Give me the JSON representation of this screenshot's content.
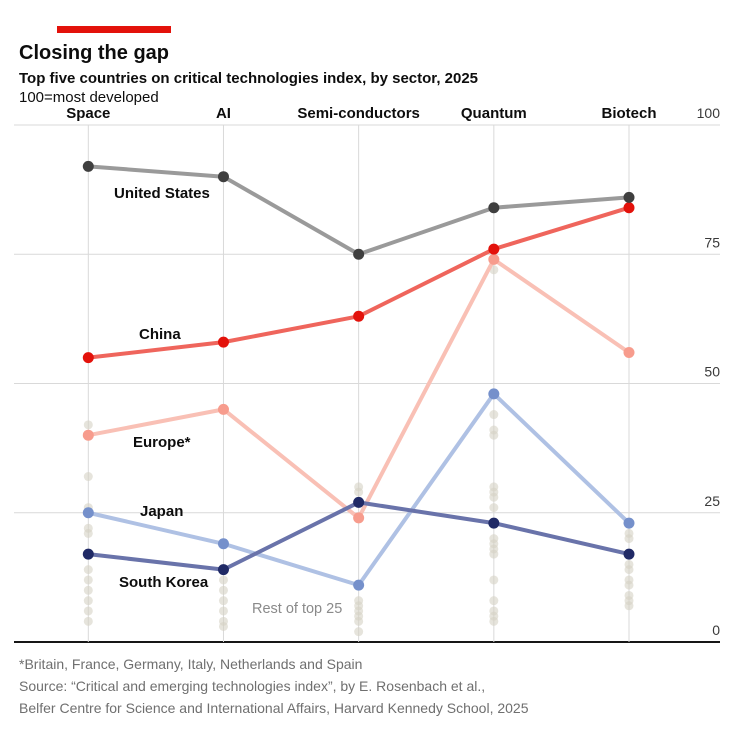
{
  "accent_color": "#e3120b",
  "header": {
    "title": "Closing the gap",
    "subtitle": "Top five countries on critical technologies index, by sector, 2025",
    "unit_note": "100=most developed"
  },
  "chart_data": {
    "type": "line",
    "title": "Closing the gap",
    "subtitle": "Top five countries on critical technologies index, by sector, 2025",
    "unit_note": "100=most developed",
    "categories": [
      "Space",
      "AI",
      "Semi-conductors",
      "Quantum",
      "Biotech"
    ],
    "series": [
      {
        "name": "United States",
        "values": [
          92,
          90,
          75,
          84,
          86
        ],
        "line_color": "#9a9a9a",
        "point_color": "#3f3f3f"
      },
      {
        "name": "China",
        "values": [
          55,
          58,
          63,
          76,
          84
        ],
        "line_color": "#ef655c",
        "point_color": "#e3120b"
      },
      {
        "name": "Europe*",
        "values": [
          40,
          45,
          24,
          74,
          56
        ],
        "line_color": "#f9c0b5",
        "point_color": "#f79c8d"
      },
      {
        "name": "Japan",
        "values": [
          25,
          19,
          11,
          48,
          23
        ],
        "line_color": "#afc1e4",
        "point_color": "#7590cb"
      },
      {
        "name": "South Korea",
        "values": [
          17,
          14,
          27,
          23,
          17
        ],
        "line_color": "#6973aa",
        "point_color": "#202a66"
      }
    ],
    "rest_of_top25": {
      "label": "Rest of top 25",
      "color": "#d5d2c4",
      "points": [
        [
          42,
          32,
          26,
          22,
          21,
          14,
          12,
          10,
          8,
          6,
          4
        ],
        [
          12,
          10,
          8,
          6,
          4,
          3
        ],
        [
          30,
          29,
          8,
          7,
          6,
          5,
          4,
          2
        ],
        [
          72,
          44,
          41,
          40,
          30,
          29,
          28,
          26,
          20,
          19,
          18,
          17,
          12,
          8,
          6,
          5,
          4
        ],
        [
          21,
          20,
          15,
          14,
          12,
          11,
          9,
          8,
          7
        ]
      ]
    },
    "yticks": [
      0,
      25,
      50,
      75,
      100
    ],
    "ylim": [
      0,
      100
    ],
    "grid_on": true,
    "legend_position": "inline-labels",
    "grid_color": "#d9d9d9",
    "axis_color": "#161616",
    "tick_label_color": "#3a3a3a",
    "category_label_color": "#0d0d0d"
  },
  "footer": {
    "footnote": "*Britain, France, Germany, Italy, Netherlands and Spain",
    "source_line1": "Source: “Critical and emerging technologies index”, by E. Rosenbach et al.,",
    "source_line2": "Belfer Centre for Science and International Affairs, Harvard Kennedy School, 2025"
  }
}
